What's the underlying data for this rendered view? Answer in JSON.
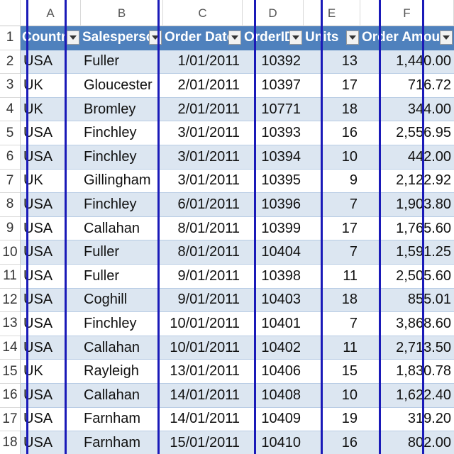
{
  "column_letters": [
    "A",
    "B",
    "C",
    "D",
    "E",
    "F"
  ],
  "header_row_number": "1",
  "headers": [
    {
      "label": "Country",
      "align": "left"
    },
    {
      "label": "Salesperson",
      "align": "left"
    },
    {
      "label": "Order Date",
      "align": "left"
    },
    {
      "label": "OrderID",
      "align": "left"
    },
    {
      "label": "Units",
      "align": "left"
    },
    {
      "label": "Order Amount",
      "align": "left"
    }
  ],
  "filter_icon": "dropdown-arrow-icon",
  "rows": [
    {
      "num": "2",
      "cells": [
        "USA",
        "Fuller",
        "1/01/2011",
        "10392",
        "13",
        "1,440.00"
      ]
    },
    {
      "num": "3",
      "cells": [
        "UK",
        "Gloucester",
        "2/01/2011",
        "10397",
        "17",
        "716.72"
      ]
    },
    {
      "num": "4",
      "cells": [
        "UK",
        "Bromley",
        "2/01/2011",
        "10771",
        "18",
        "344.00"
      ]
    },
    {
      "num": "5",
      "cells": [
        "USA",
        "Finchley",
        "3/01/2011",
        "10393",
        "16",
        "2,556.95"
      ]
    },
    {
      "num": "6",
      "cells": [
        "USA",
        "Finchley",
        "3/01/2011",
        "10394",
        "10",
        "442.00"
      ]
    },
    {
      "num": "7",
      "cells": [
        "UK",
        "Gillingham",
        "3/01/2011",
        "10395",
        "9",
        "2,122.92"
      ]
    },
    {
      "num": "8",
      "cells": [
        "USA",
        "Finchley",
        "6/01/2011",
        "10396",
        "7",
        "1,903.80"
      ]
    },
    {
      "num": "9",
      "cells": [
        "USA",
        "Callahan",
        "8/01/2011",
        "10399",
        "17",
        "1,765.60"
      ]
    },
    {
      "num": "10",
      "cells": [
        "USA",
        "Fuller",
        "8/01/2011",
        "10404",
        "7",
        "1,591.25"
      ]
    },
    {
      "num": "11",
      "cells": [
        "USA",
        "Fuller",
        "9/01/2011",
        "10398",
        "11",
        "2,505.60"
      ]
    },
    {
      "num": "12",
      "cells": [
        "USA",
        "Coghill",
        "9/01/2011",
        "10403",
        "18",
        "855.01"
      ]
    },
    {
      "num": "13",
      "cells": [
        "USA",
        "Finchley",
        "10/01/2011",
        "10401",
        "7",
        "3,868.60"
      ]
    },
    {
      "num": "14",
      "cells": [
        "USA",
        "Callahan",
        "10/01/2011",
        "10402",
        "11",
        "2,713.50"
      ]
    },
    {
      "num": "15",
      "cells": [
        "UK",
        "Rayleigh",
        "13/01/2011",
        "10406",
        "15",
        "1,830.78"
      ]
    },
    {
      "num": "16",
      "cells": [
        "USA",
        "Callahan",
        "14/01/2011",
        "10408",
        "10",
        "1,622.40"
      ]
    },
    {
      "num": "17",
      "cells": [
        "USA",
        "Farnham",
        "14/01/2011",
        "10409",
        "19",
        "319.20"
      ]
    },
    {
      "num": "18",
      "cells": [
        "USA",
        "Farnham",
        "15/01/2011",
        "10410",
        "16",
        "802.00"
      ]
    }
  ],
  "cell_align": [
    "left",
    "left",
    "right",
    "right",
    "right",
    "right"
  ],
  "colors": {
    "header_fill": "#4f81bd",
    "band_fill": "#dce6f1",
    "overlay_line": "#1a1ab8"
  }
}
